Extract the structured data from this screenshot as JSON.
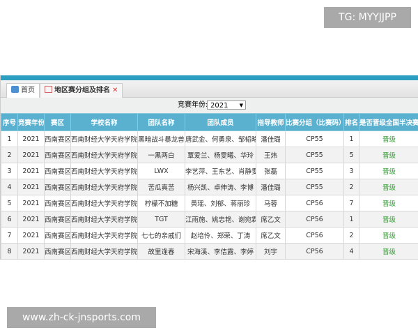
{
  "watermark_top": "TG: MYYJJPP",
  "watermark_bottom": "www.zh-ck-jnsports.com",
  "tabs": [
    {
      "label": "首页",
      "icon": "home-icon"
    },
    {
      "label": "地区赛分组及排名",
      "icon": "grid-icon"
    }
  ],
  "filter": {
    "label": "竞赛年份:",
    "value": "2021"
  },
  "columns": [
    "序号",
    "竞赛年份",
    "赛区",
    "学校名称",
    "团队名称",
    "团队成员",
    "指导教师",
    "比赛分组（比赛码）",
    "排名",
    "是否晋级全国半决赛"
  ],
  "rows": [
    [
      "1",
      "2021",
      "西南赛区",
      "西南财经大学天府学院",
      "黑暗战斗暴龙兽",
      "唐武金、何勇泉、邹韬略",
      "潘佳璐",
      "CP55",
      "1",
      "晋级"
    ],
    [
      "2",
      "2021",
      "西南赛区",
      "西南财经大学天府学院",
      "一黑两白",
      "覃爱兰、杨雯曦、华玲",
      "王炜",
      "CP55",
      "5",
      "晋级"
    ],
    [
      "3",
      "2021",
      "西南赛区",
      "西南财经大学天府学院",
      "LWX",
      "李艺萍、王东艺、肖静雯",
      "张磊",
      "CP55",
      "3",
      "晋级"
    ],
    [
      "4",
      "2021",
      "西南赛区",
      "西南财经大学天府学院",
      "苦瓜真苦",
      "杨兴凯、卓伸涛、李博",
      "潘佳璐",
      "CP55",
      "2",
      "晋级"
    ],
    [
      "5",
      "2021",
      "西南赛区",
      "西南财经大学天府学院",
      "柠檬不加糖",
      "黄瑶、刘郁、蒋丽珍",
      "马蓉",
      "CP56",
      "7",
      "晋级"
    ],
    [
      "6",
      "2021",
      "西南赛区",
      "西南财经大学天府学院",
      "TGT",
      "江雨施、姚忠艳、谢宛霖",
      "席乙文",
      "CP56",
      "1",
      "晋级"
    ],
    [
      "7",
      "2021",
      "西南赛区",
      "西南财经大学天府学院",
      "七七的亲戚们",
      "赵培伶、郑荣、丁涛",
      "席乙文",
      "CP56",
      "2",
      "晋级"
    ],
    [
      "8",
      "2021",
      "西南赛区",
      "西南财经大学天府学院",
      "故里逢春",
      "宋海溪、李佶露、李婷",
      "刘宇",
      "CP56",
      "4",
      "晋级"
    ]
  ]
}
